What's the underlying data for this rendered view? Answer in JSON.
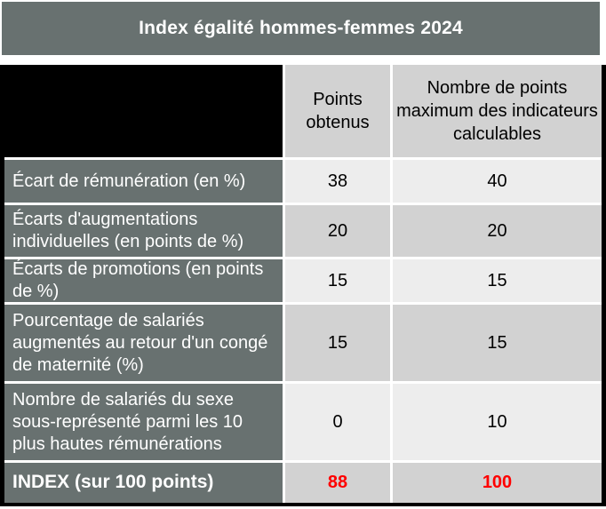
{
  "title": "Index égalité hommes-femmes 2024",
  "table": {
    "column_headers": {
      "points": "Points obtenus",
      "max": "Nombre de points maximum des indicateurs calculables"
    },
    "rows": [
      {
        "label": "Écart de rémunération (en %)",
        "points": "38",
        "max": "40"
      },
      {
        "label": "Écarts d'augmentations individuelles (en points de %)",
        "points": "20",
        "max": "20"
      },
      {
        "label": "Écarts de promotions (en points de %)",
        "points": "15",
        "max": "15"
      },
      {
        "label": "Pourcentage de salariés augmentés au retour d'un congé de maternité (%)",
        "points": "15",
        "max": "15"
      },
      {
        "label": "Nombre de salariés du sexe sous-représenté parmi les 10 plus hautes rémunérations",
        "points": "0",
        "max": "10"
      }
    ],
    "total": {
      "label": "INDEX (sur 100 points)",
      "points": "88",
      "max": "100"
    }
  },
  "colors": {
    "header_bg": "#687170",
    "label_bg": "#687170",
    "value_light": "#ededed",
    "value_dark": "#d2d2d2",
    "total_value_color": "#ff0000",
    "redacted": "#000000"
  }
}
